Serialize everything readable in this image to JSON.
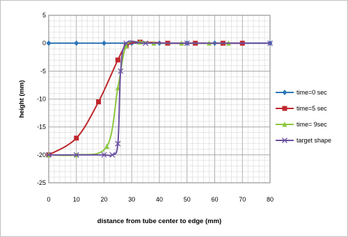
{
  "chart_data": {
    "type": "scatter",
    "title": "",
    "xlabel": "distance from tube center to edge (mm)",
    "ylabel": "height (mm)",
    "xlim": [
      0,
      80
    ],
    "ylim": [
      -25,
      5
    ],
    "x_ticks": [
      0,
      10,
      20,
      30,
      40,
      50,
      60,
      70,
      80
    ],
    "y_ticks": [
      5,
      0,
      -5,
      -10,
      -15,
      -20,
      -25
    ],
    "grid": true,
    "legend": "right",
    "series": [
      {
        "name": "time=0 sec",
        "color": "#2e75b6",
        "marker": "diamond",
        "smooth": false,
        "x": [
          0,
          10,
          20,
          30,
          40,
          50,
          60,
          70,
          80
        ],
        "y": [
          0,
          0,
          0,
          0,
          0,
          0,
          0,
          0,
          0
        ]
      },
      {
        "name": "time=5 sec",
        "color": "#c0272d",
        "marker": "square",
        "smooth": true,
        "x": [
          0,
          10,
          18,
          25,
          28,
          33,
          43,
          53,
          63,
          70
        ],
        "y": [
          -20,
          -17,
          -10.5,
          -3,
          -0.5,
          0.2,
          0,
          0,
          0,
          0
        ]
      },
      {
        "name": "time= 9sec",
        "color": "#8dc63f",
        "marker": "triangle",
        "smooth": true,
        "x": [
          0,
          10,
          21,
          25,
          28,
          33,
          38,
          48,
          58,
          65
        ],
        "y": [
          -20,
          -20,
          -18.5,
          -8,
          -0.5,
          0.2,
          0,
          0,
          0,
          0
        ]
      },
      {
        "name": "target shape",
        "color": "#6a4fa0",
        "marker": "x",
        "smooth": true,
        "x": [
          0,
          10,
          20,
          23,
          25,
          26,
          28,
          35,
          50,
          80
        ],
        "y": [
          -20,
          -20,
          -20,
          -20,
          -18,
          -5,
          0,
          0,
          0,
          0
        ]
      }
    ]
  }
}
